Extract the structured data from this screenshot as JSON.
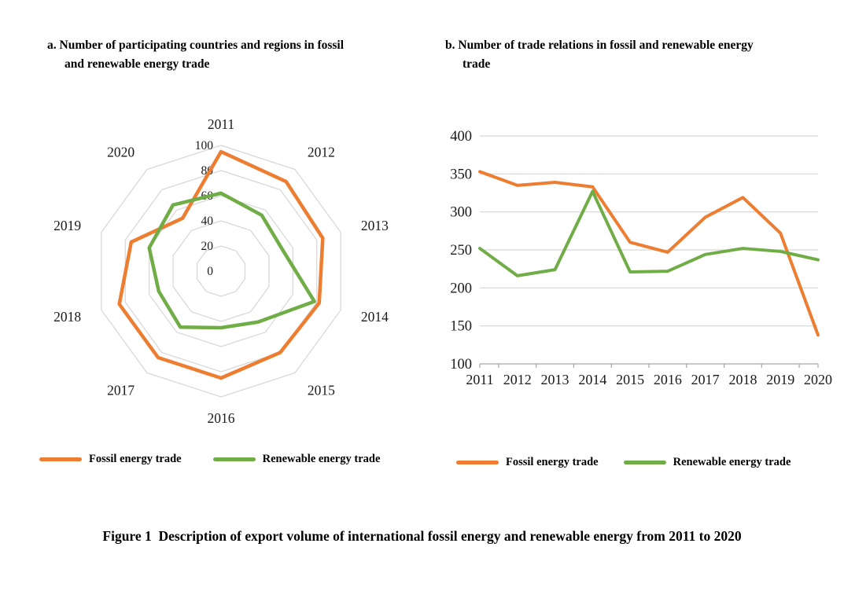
{
  "caption": "Figure 1  Description of export volume of international fossil energy and renewable energy from 2011 to 2020",
  "colors": {
    "fossil": "#ED7D31",
    "renewable": "#70AD47",
    "grid": "#D6D6D6",
    "axis": "#A6A6A6",
    "text": "#1a1a1a"
  },
  "chart_data": [
    {
      "type": "radar",
      "title": "a. Number of participating countries and regions in fossil and renewable energy trade",
      "categories": [
        "2011",
        "2012",
        "2013",
        "2014",
        "2015",
        "2016",
        "2017",
        "2018",
        "2019",
        "2020"
      ],
      "rmax": 100,
      "rticks": [
        0,
        20,
        40,
        60,
        80,
        100
      ],
      "grid": true,
      "legend_position": "bottom",
      "series": [
        {
          "name": "Fossil energy trade",
          "color": "#ED7D31",
          "values": [
            95,
            88,
            85,
            82,
            80,
            85,
            85,
            85,
            75,
            52
          ]
        },
        {
          "name": "Renewable energy trade",
          "color": "#70AD47",
          "values": [
            62,
            55,
            52,
            78,
            50,
            45,
            55,
            52,
            60,
            65
          ]
        }
      ]
    },
    {
      "type": "line",
      "title": "b. Number of trade relations in fossil and renewable energy trade",
      "categories": [
        "2011",
        "2012",
        "2013",
        "2014",
        "2015",
        "2016",
        "2017",
        "2018",
        "2019",
        "2020"
      ],
      "ylim": [
        100,
        400
      ],
      "ystep": 50,
      "grid": true,
      "legend_position": "bottom",
      "series": [
        {
          "name": "Fossil energy trade",
          "color": "#ED7D31",
          "values": [
            353,
            335,
            339,
            333,
            260,
            247,
            293,
            319,
            272,
            138
          ]
        },
        {
          "name": "Renewable energy trade",
          "color": "#70AD47",
          "values": [
            252,
            216,
            224,
            327,
            221,
            222,
            244,
            252,
            248,
            237
          ]
        }
      ]
    }
  ]
}
